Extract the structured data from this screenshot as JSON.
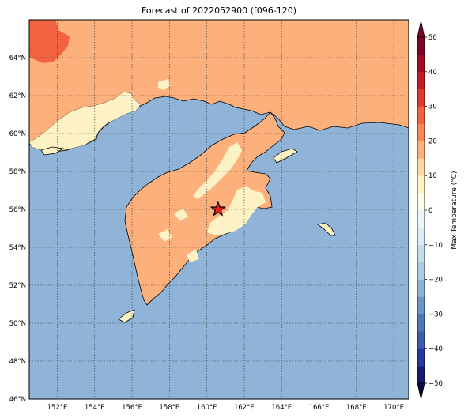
{
  "figure": {
    "title": "Forecast of 2022052900 (f096-120)"
  },
  "map": {
    "lon_range": [
      150.5,
      170.8
    ],
    "lat_range": [
      46,
      66
    ],
    "lat_ticks": [
      {
        "value": 46,
        "label": "46°N"
      },
      {
        "value": 48,
        "label": "48°N"
      },
      {
        "value": 50,
        "label": "50°N"
      },
      {
        "value": 52,
        "label": "52°N"
      },
      {
        "value": 54,
        "label": "54°N"
      },
      {
        "value": 56,
        "label": "56°N"
      },
      {
        "value": 58,
        "label": "58°N"
      },
      {
        "value": 60,
        "label": "60°N"
      },
      {
        "value": 62,
        "label": "62°N"
      },
      {
        "value": 64,
        "label": "64°N"
      }
    ],
    "lon_ticks": [
      {
        "value": 152,
        "label": "152°E"
      },
      {
        "value": 154,
        "label": "154°E"
      },
      {
        "value": 156,
        "label": "156°E"
      },
      {
        "value": 158,
        "label": "158°E"
      },
      {
        "value": 160,
        "label": "160°E"
      },
      {
        "value": 162,
        "label": "162°E"
      },
      {
        "value": 164,
        "label": "164°E"
      },
      {
        "value": 166,
        "label": "166°E"
      },
      {
        "value": 168,
        "label": "168°E"
      },
      {
        "value": 170,
        "label": "170°E"
      }
    ],
    "ocean_color": "#8fb4d8",
    "marker": {
      "lon": 160.6,
      "lat": 56.0,
      "symbol": "star",
      "color": "#e8201e"
    }
  },
  "colorbar": {
    "label": "Max Temperature (°C)",
    "ticks": [
      "50",
      "40",
      "30",
      "20",
      "10",
      "0",
      "−10",
      "−20",
      "−30",
      "−40",
      "−50"
    ],
    "bands": [
      {
        "from": -50,
        "to": -45,
        "color": "#161b70"
      },
      {
        "from": -45,
        "to": -40,
        "color": "#28389c"
      },
      {
        "from": -40,
        "to": -35,
        "color": "#3e5ba8"
      },
      {
        "from": -35,
        "to": -30,
        "color": "#4f77b4"
      },
      {
        "from": -30,
        "to": -25,
        "color": "#6b95c5"
      },
      {
        "from": -25,
        "to": -20,
        "color": "#8cb3d6"
      },
      {
        "from": -20,
        "to": -15,
        "color": "#a9cbe3"
      },
      {
        "from": -15,
        "to": -10,
        "color": "#c2dcec"
      },
      {
        "from": -10,
        "to": -5,
        "color": "#d9ebf3"
      },
      {
        "from": -5,
        "to": 0,
        "color": "#eaf5f8"
      },
      {
        "from": 0,
        "to": 5,
        "color": "#fdfce4"
      },
      {
        "from": 5,
        "to": 10,
        "color": "#fdf2c4"
      },
      {
        "from": 10,
        "to": 15,
        "color": "#fcd9a3"
      },
      {
        "from": 15,
        "to": 20,
        "color": "#fcb07c"
      },
      {
        "from": 20,
        "to": 25,
        "color": "#f98857"
      },
      {
        "from": 25,
        "to": 30,
        "color": "#f26340"
      },
      {
        "from": 30,
        "to": 35,
        "color": "#de3b2d"
      },
      {
        "from": 35,
        "to": 40,
        "color": "#c41c24"
      },
      {
        "from": 40,
        "to": 45,
        "color": "#a30b22"
      },
      {
        "from": 45,
        "to": 50,
        "color": "#7d0422"
      }
    ]
  }
}
